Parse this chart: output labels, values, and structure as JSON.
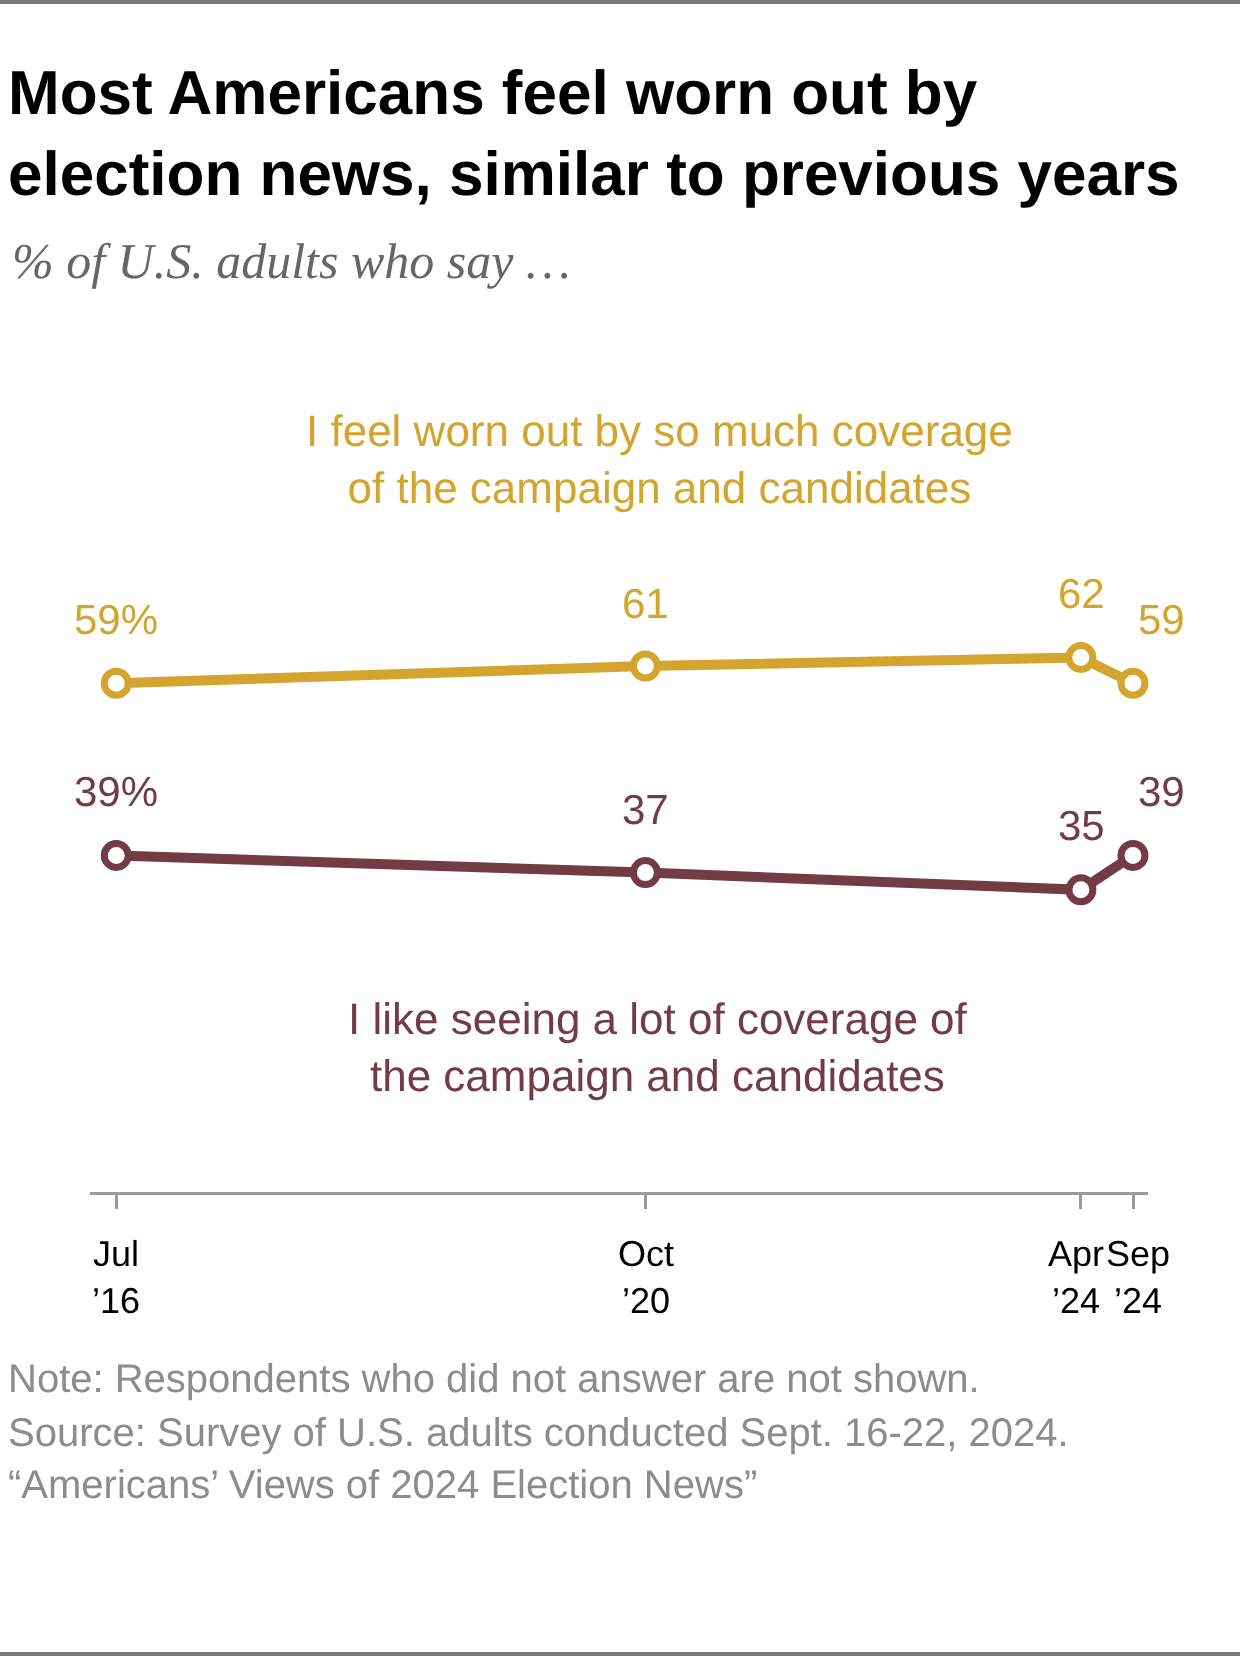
{
  "chart_data": {
    "type": "line",
    "title": "Most Americans feel worn out by\nelection news, similar to previous years",
    "subtitle": "% of U.S. adults who say …",
    "x": [
      "2016-07",
      "2020-10",
      "2024-04",
      "2024-09"
    ],
    "series": [
      {
        "name": "I feel worn out by so much coverage\nof the campaign and candidates",
        "color": "#d3a52e",
        "values": [
          59,
          61,
          62,
          59
        ],
        "value_labels": [
          "59%",
          "61",
          "62",
          "59"
        ]
      },
      {
        "name": "I like seeing a lot of coverage of\nthe campaign and candidates",
        "color": "#733b45",
        "values": [
          39,
          37,
          35,
          39
        ],
        "value_labels": [
          "39%",
          "37",
          "35",
          "39"
        ]
      }
    ],
    "xlim": [
      "2016-04-15",
      "2024-10-15"
    ],
    "xticks": [
      {
        "value": "2016-07",
        "label": "Jul\n’16"
      },
      {
        "value": "2020-10",
        "label": "Oct\n’20"
      },
      {
        "value": "2024-04",
        "label": "Apr\n’24"
      },
      {
        "value": "2024-09",
        "label": "Sep\n’24"
      }
    ],
    "tick_labels": "x",
    "marker": "circle",
    "line_style": "solid",
    "annotations": [
      "Note: Respondents who did not answer are not shown.",
      "Source: Survey of U.S. adults conducted Sept. 16-22, 2024.",
      "“Americans’ Views of 2024 Election News”"
    ]
  }
}
